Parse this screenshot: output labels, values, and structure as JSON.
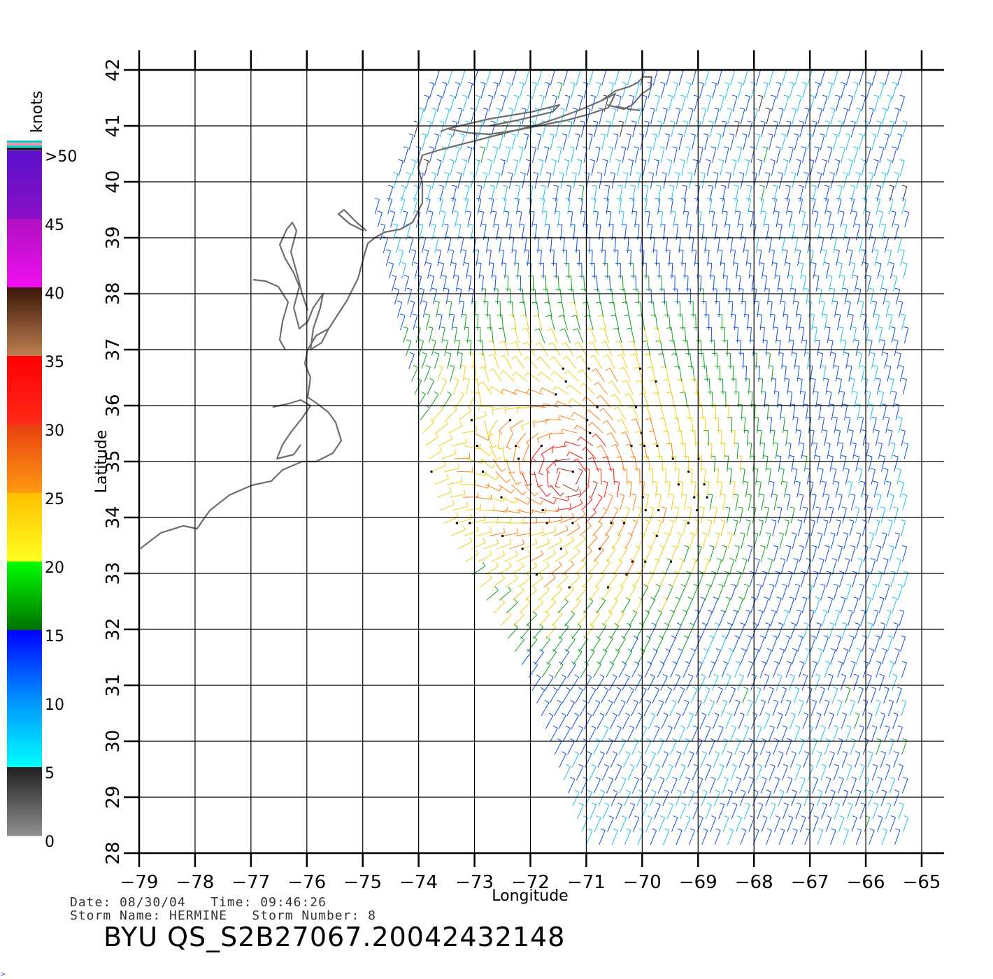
{
  "map": {
    "lon_range": [
      -79,
      -65
    ],
    "lat_range": [
      28,
      42
    ],
    "lon_ticks": [
      "−79",
      "−78",
      "−77",
      "−76",
      "−75",
      "−74",
      "−73",
      "−72",
      "−71",
      "−70",
      "−69",
      "−68",
      "−67",
      "−66",
      "−65"
    ],
    "lat_ticks": [
      "28",
      "29",
      "30",
      "31",
      "32",
      "33",
      "34",
      "35",
      "36",
      "37",
      "38",
      "39",
      "40",
      "41",
      "42"
    ],
    "xlabel": "Longitude",
    "ylabel": "Latitude",
    "grid": true,
    "coastline_color": "#6e6e6e"
  },
  "colorbar": {
    "unit_label": "knots",
    "labels": [
      ">50",
      "45",
      "40",
      "35",
      "30",
      "25",
      "20",
      "15",
      "10",
      "5",
      "0"
    ],
    "bands": [
      {
        "range": "45-50",
        "top": "#5a10c8",
        "bottom": "#8a10c8"
      },
      {
        "range": "40-45",
        "top": "#b010c0",
        "bottom": "#f010f0"
      },
      {
        "range": "35-40",
        "top": "#3a1608",
        "bottom": "#c08050"
      },
      {
        "range": "30-35",
        "top": "#ff0000",
        "bottom": "#ff2a1a"
      },
      {
        "range": "25-30",
        "top": "#e84010",
        "bottom": "#ff9a10"
      },
      {
        "range": "20-25",
        "top": "#ffc000",
        "bottom": "#ffff20"
      },
      {
        "range": "15-20",
        "top": "#00ff00",
        "bottom": "#007000"
      },
      {
        "range": "10-15",
        "top": "#0000ff",
        "bottom": "#0090ff"
      },
      {
        "range": "5-10",
        "top": "#0090ff",
        "bottom": "#00ffff"
      },
      {
        "range": "0-5",
        "top": "#202020",
        "bottom": "#909090"
      }
    ],
    "top_stripes": [
      "#00c8c8",
      "#ff80a0",
      "#00c8c8",
      "#000000"
    ]
  },
  "info": {
    "date_line": "Date: 08/30/04   Time: 09:46:26",
    "storm_line": "Storm Name: HERMINE   Storm Number: 8",
    "product_id": "BYU QS_S2B27067.20042432148"
  },
  "chart_data": {
    "type": "wind_barb_map",
    "storm": {
      "name": "HERMINE",
      "number": 8,
      "center_lon": -71.3,
      "center_lat": 34.7
    },
    "speed_unit": "knots",
    "swaths": [
      {
        "lon_range": [
          -74.5,
          -65.3
        ],
        "lat_range": [
          28.0,
          42.0
        ]
      }
    ]
  }
}
